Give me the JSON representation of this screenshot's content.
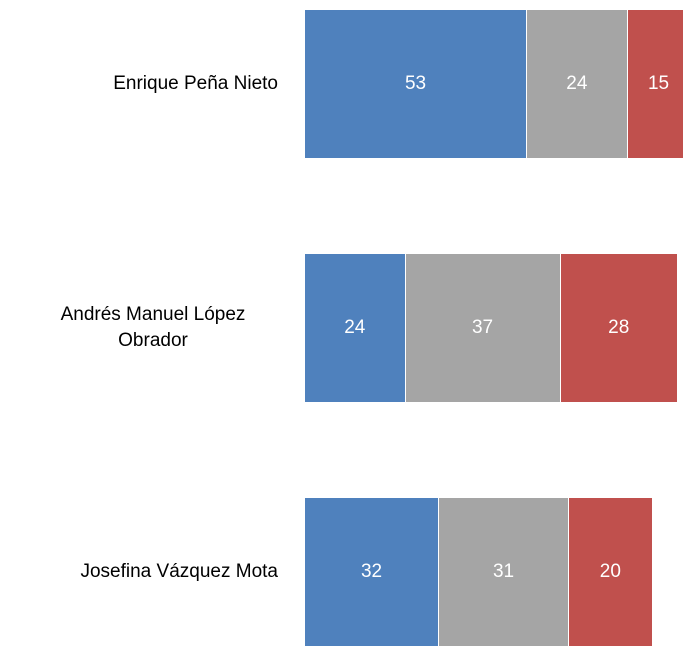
{
  "chart_data": {
    "type": "bar",
    "orientation": "horizontal",
    "stacked": true,
    "categories": [
      "Enrique Peña Nieto",
      "Andrés Manuel López Obrador",
      "Josefina Vázquez Mota"
    ],
    "series": [
      {
        "color": "#4f81bd",
        "values": [
          53,
          24,
          32
        ]
      },
      {
        "color": "#a5a5a5",
        "values": [
          24,
          37,
          31
        ]
      },
      {
        "color": "#c0504d",
        "values": [
          15,
          28,
          20
        ]
      }
    ]
  }
}
